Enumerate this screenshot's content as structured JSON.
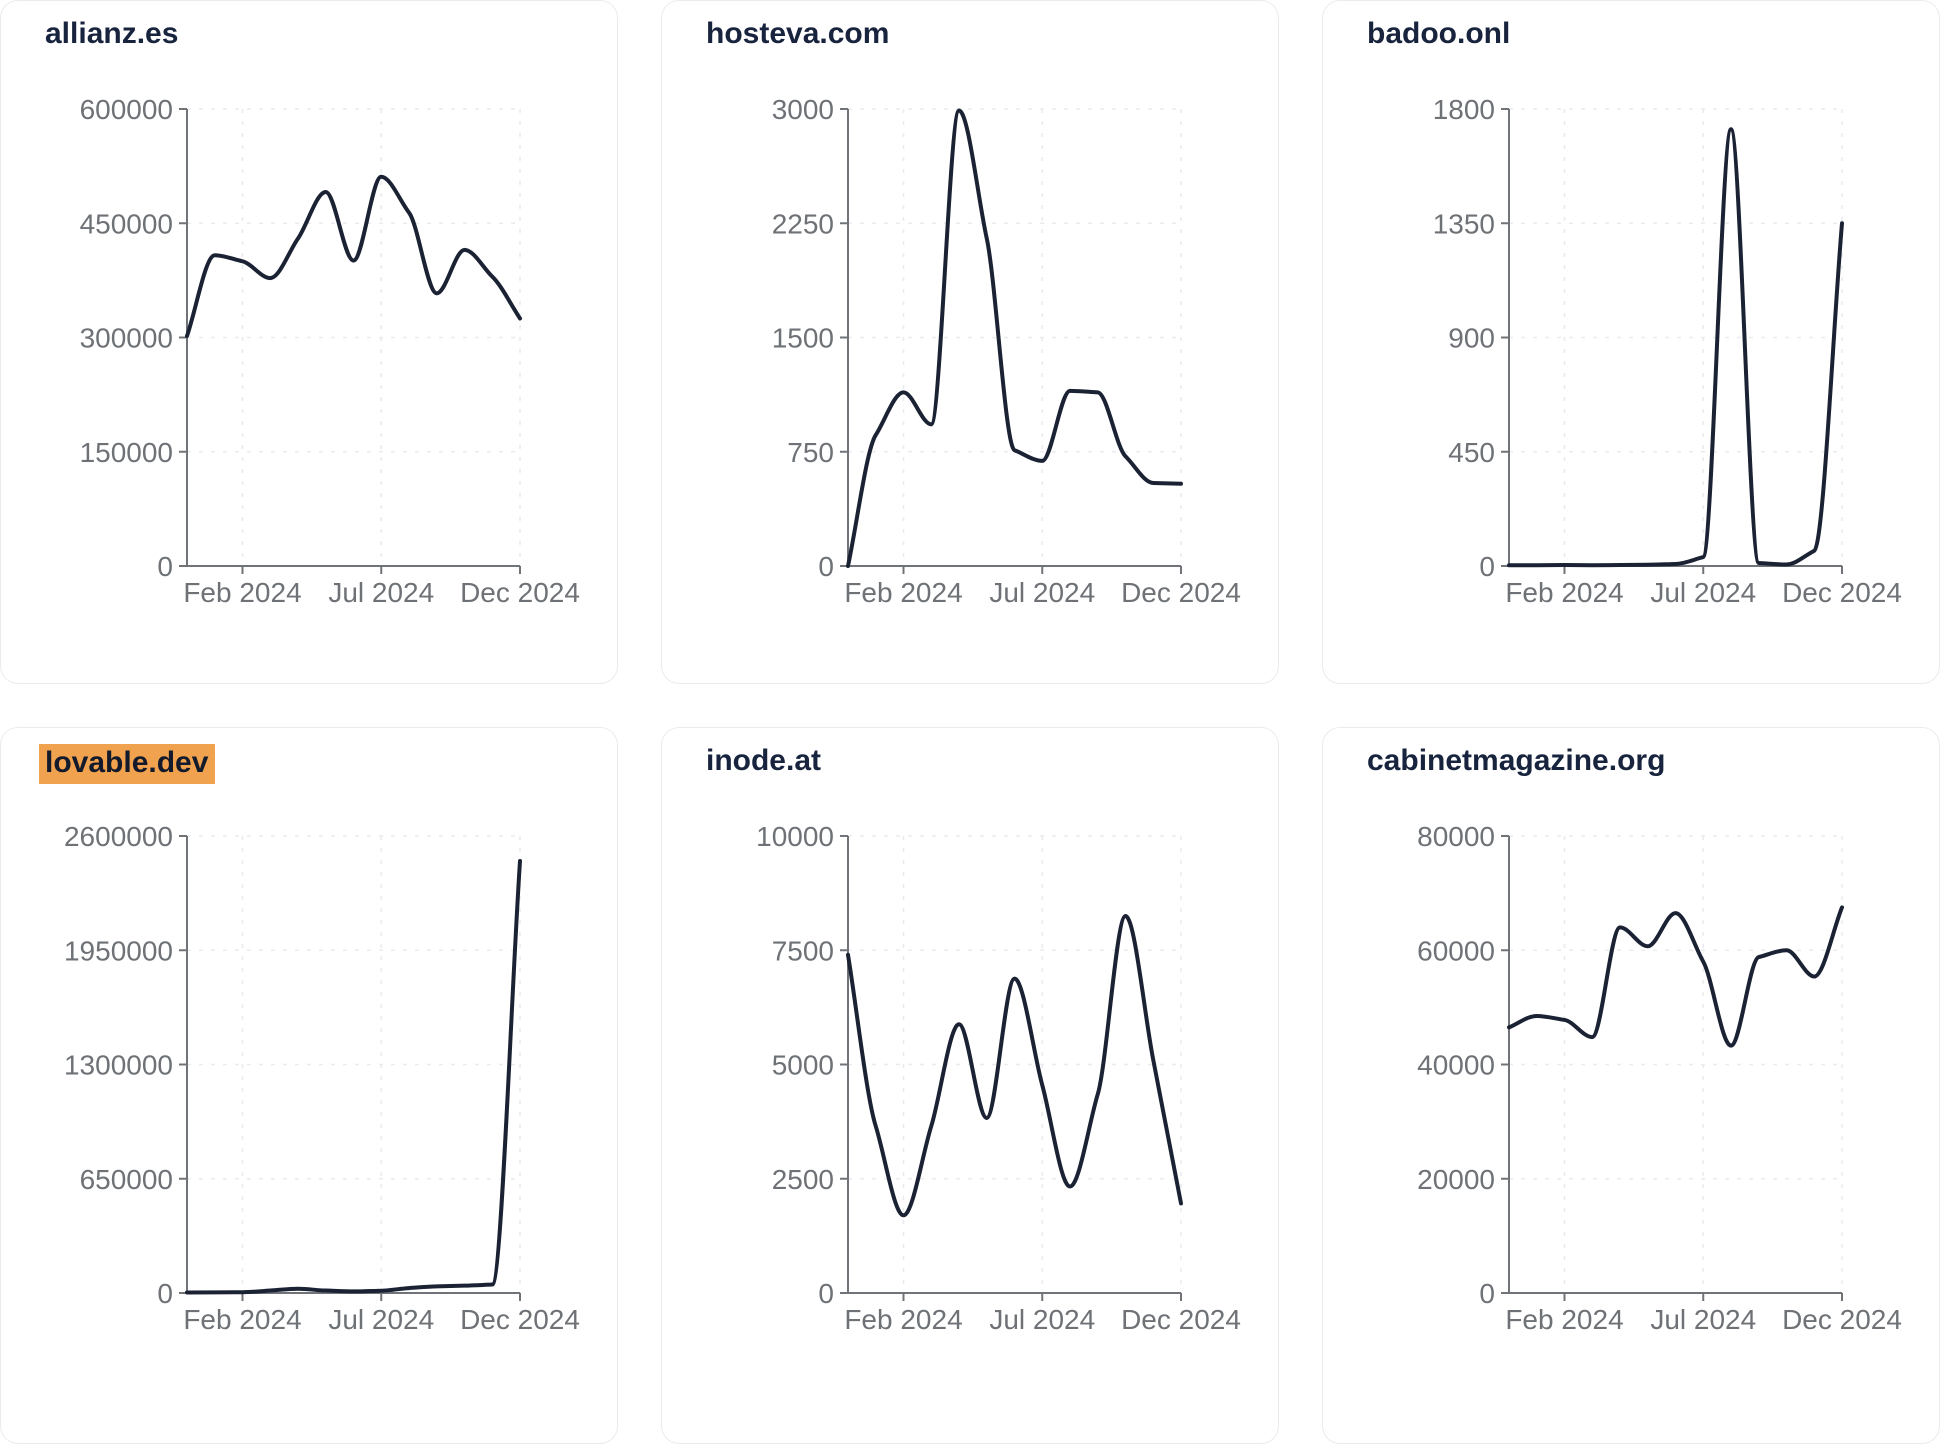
{
  "page": {
    "background": "#ffffff",
    "layout": "2x3-chart-card-grid"
  },
  "colors": {
    "line": "#1b2234",
    "title": "#18243e",
    "tick_label": "#6e7277",
    "axis": "#707479",
    "gridline": "#e9ebee",
    "card_border": "#e9ecef",
    "card_background": "#ffffff",
    "title_highlight": "#f0a24f"
  },
  "chart_data": [
    {
      "type": "line",
      "title": "allianz.es",
      "title_highlighted": false,
      "x": [
        "Dec 2023",
        "Jan 2024",
        "Feb 2024",
        "Mar 2024",
        "Apr 2024",
        "May 2024",
        "Jun 2024",
        "Jul 2024",
        "Aug 2024",
        "Sep 2024",
        "Oct 2024",
        "Nov 2024",
        "Dec 2024"
      ],
      "values": [
        302000,
        408000,
        400000,
        378000,
        430000,
        491000,
        401000,
        511000,
        464000,
        358000,
        415000,
        380000,
        325000
      ],
      "ylim": [
        0,
        600000
      ],
      "yticks": [
        0,
        150000,
        300000,
        450000,
        600000
      ],
      "x_tick_labels": [
        "Feb 2024",
        "Jul 2024",
        "Dec 2024"
      ],
      "grid": "dashed",
      "legend": "none"
    },
    {
      "type": "line",
      "title": "hosteva.com",
      "title_highlighted": false,
      "x": [
        "Dec 2023",
        "Jan 2024",
        "Feb 2024",
        "Mar 2024",
        "Apr 2024",
        "May 2024",
        "Jun 2024",
        "Jul 2024",
        "Aug 2024",
        "Sep 2024",
        "Oct 2024",
        "Nov 2024",
        "Dec 2024"
      ],
      "values": [
        0,
        860,
        1140,
        930,
        2990,
        2150,
        760,
        690,
        1150,
        1140,
        720,
        545,
        540
      ],
      "ylim": [
        0,
        3000
      ],
      "yticks": [
        0,
        750,
        1500,
        2250,
        3000
      ],
      "x_tick_labels": [
        "Feb 2024",
        "Jul 2024",
        "Dec 2024"
      ],
      "grid": "dashed",
      "legend": "none"
    },
    {
      "type": "line",
      "title": "badoo.onl",
      "title_highlighted": false,
      "x": [
        "Dec 2023",
        "Jan 2024",
        "Feb 2024",
        "Mar 2024",
        "Apr 2024",
        "May 2024",
        "Jun 2024",
        "Jul 2024",
        "Aug 2024",
        "Sep 2024",
        "Oct 2024",
        "Nov 2024",
        "Dec 2024"
      ],
      "values": [
        3,
        3,
        4,
        3,
        4,
        5,
        8,
        35,
        1720,
        12,
        6,
        60,
        1350
      ],
      "ylim": [
        0,
        1800
      ],
      "yticks": [
        0,
        450,
        900,
        1350,
        1800
      ],
      "x_tick_labels": [
        "Feb 2024",
        "Jul 2024",
        "Dec 2024"
      ],
      "grid": "dashed",
      "legend": "none"
    },
    {
      "type": "line",
      "title": "lovable.dev",
      "title_highlighted": true,
      "x": [
        "Dec 2023",
        "Jan 2024",
        "Feb 2024",
        "Mar 2024",
        "Apr 2024",
        "May 2024",
        "Jun 2024",
        "Jul 2024",
        "Aug 2024",
        "Sep 2024",
        "Oct 2024",
        "Nov 2024",
        "Dec 2024"
      ],
      "values": [
        3000,
        3500,
        4500,
        14000,
        24000,
        14000,
        9000,
        13000,
        28000,
        38000,
        42000,
        48000,
        2458000
      ],
      "ylim": [
        0,
        2600000
      ],
      "yticks": [
        0,
        650000,
        1300000,
        1950000,
        2600000
      ],
      "x_tick_labels": [
        "Feb 2024",
        "Jul 2024",
        "Dec 2024"
      ],
      "grid": "dashed",
      "legend": "none"
    },
    {
      "type": "line",
      "title": "inode.at",
      "title_highlighted": false,
      "x": [
        "Dec 2023",
        "Jan 2024",
        "Feb 2024",
        "Mar 2024",
        "Apr 2024",
        "May 2024",
        "Jun 2024",
        "Jul 2024",
        "Aug 2024",
        "Sep 2024",
        "Oct 2024",
        "Nov 2024",
        "Dec 2024"
      ],
      "values": [
        7400,
        3650,
        1700,
        3650,
        5880,
        3830,
        6880,
        4550,
        2330,
        4350,
        8250,
        5100,
        1960
      ],
      "ylim": [
        0,
        10000
      ],
      "yticks": [
        0,
        2500,
        5000,
        7500,
        10000
      ],
      "x_tick_labels": [
        "Feb 2024",
        "Jul 2024",
        "Dec 2024"
      ],
      "grid": "dashed",
      "legend": "none"
    },
    {
      "type": "line",
      "title": "cabinetmagazine.org",
      "title_highlighted": false,
      "x": [
        "Dec 2023",
        "Jan 2024",
        "Feb 2024",
        "Mar 2024",
        "Apr 2024",
        "May 2024",
        "Jun 2024",
        "Jul 2024",
        "Aug 2024",
        "Sep 2024",
        "Oct 2024",
        "Nov 2024",
        "Dec 2024"
      ],
      "values": [
        46500,
        48500,
        47800,
        44800,
        64000,
        60700,
        66500,
        58000,
        43300,
        58800,
        60000,
        55400,
        67500
      ],
      "ylim": [
        0,
        80000
      ],
      "yticks": [
        0,
        20000,
        40000,
        60000,
        80000
      ],
      "x_tick_labels": [
        "Feb 2024",
        "Jul 2024",
        "Dec 2024"
      ],
      "grid": "dashed",
      "legend": "none"
    }
  ]
}
